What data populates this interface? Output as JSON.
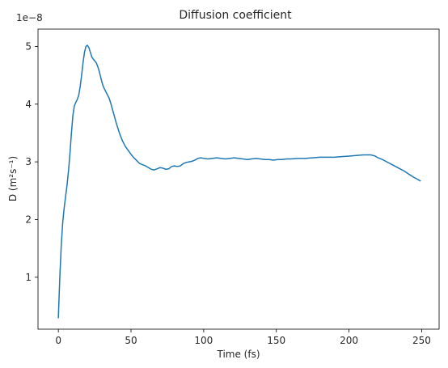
{
  "chart_data": {
    "type": "line",
    "title": "Diffusion coefficient",
    "xlabel": "Time (fs)",
    "ylabel": "D (m²s⁻¹)",
    "offset_label": "1e−8",
    "xlim": [
      -14,
      262
    ],
    "ylim": [
      0.1,
      5.3
    ],
    "xticks": [
      0,
      50,
      100,
      150,
      200,
      250
    ],
    "xtick_labels": [
      "0",
      "50",
      "100",
      "150",
      "200",
      "250"
    ],
    "yticks": [
      1,
      2,
      3,
      4,
      5
    ],
    "ytick_labels": [
      "1",
      "2",
      "3",
      "4",
      "5"
    ],
    "grid": false,
    "legend": "none",
    "series": [
      {
        "color": "#1f77b4",
        "x": [
          0,
          1,
          2,
          3,
          4,
          5,
          6,
          7,
          8,
          9,
          10,
          11,
          12,
          13,
          14,
          15,
          16,
          17,
          18,
          19,
          20,
          21,
          22,
          23,
          24,
          25,
          26,
          27,
          28,
          29,
          30,
          31,
          32,
          33,
          34,
          35,
          36,
          37,
          38,
          39,
          40,
          42,
          44,
          46,
          48,
          50,
          52,
          54,
          56,
          58,
          60,
          62,
          64,
          66,
          68,
          70,
          72,
          74,
          76,
          78,
          80,
          82,
          84,
          86,
          88,
          90,
          92,
          94,
          96,
          98,
          100,
          103,
          106,
          109,
          112,
          115,
          118,
          121,
          124,
          127,
          130,
          133,
          136,
          139,
          142,
          145,
          148,
          151,
          154,
          157,
          160,
          165,
          170,
          175,
          180,
          185,
          190,
          195,
          200,
          205,
          210,
          215,
          218,
          220,
          223,
          226,
          229,
          232,
          235,
          238,
          241,
          244,
          247,
          249
        ],
        "values": [
          0.3,
          1.0,
          1.55,
          1.95,
          2.2,
          2.4,
          2.6,
          2.85,
          3.15,
          3.5,
          3.8,
          3.97,
          4.03,
          4.08,
          4.15,
          4.3,
          4.5,
          4.72,
          4.9,
          5.0,
          5.02,
          4.98,
          4.9,
          4.82,
          4.78,
          4.75,
          4.72,
          4.66,
          4.58,
          4.48,
          4.38,
          4.3,
          4.25,
          4.2,
          4.15,
          4.1,
          4.02,
          3.93,
          3.84,
          3.75,
          3.66,
          3.5,
          3.37,
          3.27,
          3.2,
          3.13,
          3.07,
          3.02,
          2.97,
          2.95,
          2.93,
          2.9,
          2.87,
          2.86,
          2.88,
          2.9,
          2.89,
          2.87,
          2.88,
          2.92,
          2.93,
          2.92,
          2.93,
          2.97,
          2.99,
          3.0,
          3.01,
          3.03,
          3.06,
          3.07,
          3.06,
          3.05,
          3.06,
          3.07,
          3.06,
          3.05,
          3.06,
          3.07,
          3.06,
          3.05,
          3.04,
          3.05,
          3.06,
          3.05,
          3.04,
          3.04,
          3.03,
          3.04,
          3.04,
          3.05,
          3.05,
          3.06,
          3.06,
          3.07,
          3.08,
          3.08,
          3.08,
          3.09,
          3.1,
          3.11,
          3.12,
          3.12,
          3.1,
          3.07,
          3.04,
          3.0,
          2.96,
          2.92,
          2.88,
          2.84,
          2.79,
          2.74,
          2.7,
          2.67
        ]
      }
    ]
  }
}
